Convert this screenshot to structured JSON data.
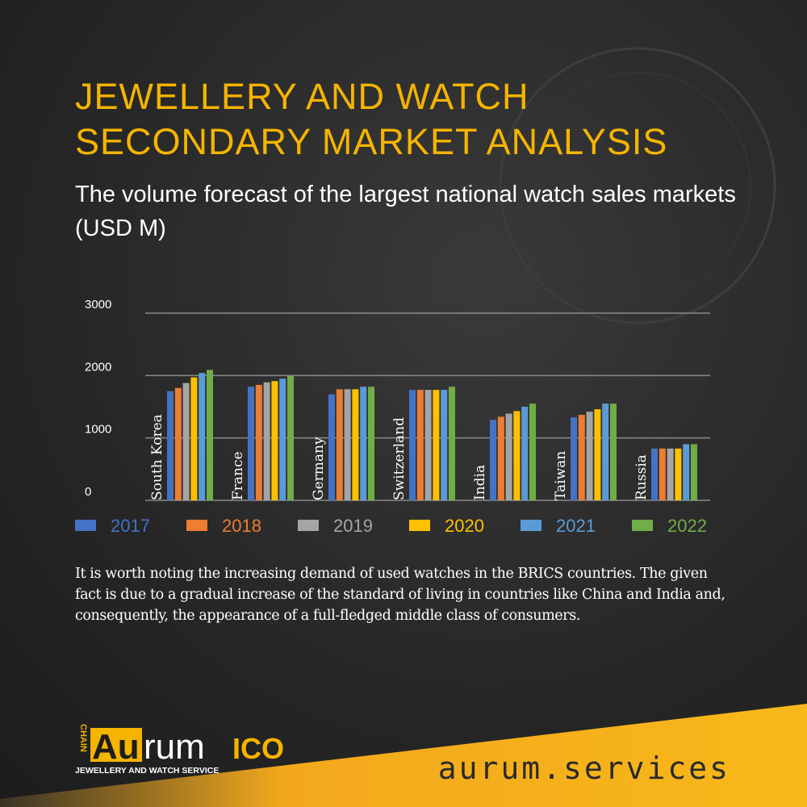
{
  "header": {
    "title": "JEWELLERY AND WATCH SECONDARY MARKET ANALYSIS"
  },
  "chart_data": {
    "type": "bar",
    "title": "The volume forecast of the largest national watch sales markets (USD M)",
    "categories": [
      "South Korea",
      "France",
      "Germany",
      "Switzerland",
      "India",
      "Taiwan",
      "Russia"
    ],
    "series": [
      {
        "name": "2017",
        "color": "#4472c4",
        "values": [
          1750,
          1820,
          1700,
          1770,
          1290,
          1330,
          830
        ]
      },
      {
        "name": "2018",
        "color": "#ed7d31",
        "values": [
          1800,
          1850,
          1780,
          1770,
          1340,
          1370,
          830
        ]
      },
      {
        "name": "2019",
        "color": "#a5a5a5",
        "values": [
          1880,
          1890,
          1780,
          1770,
          1390,
          1420,
          830
        ]
      },
      {
        "name": "2020",
        "color": "#ffc000",
        "values": [
          1970,
          1910,
          1780,
          1770,
          1430,
          1460,
          830
        ]
      },
      {
        "name": "2021",
        "color": "#5b9bd5",
        "values": [
          2040,
          1950,
          1820,
          1770,
          1500,
          1550,
          900
        ]
      },
      {
        "name": "2022",
        "color": "#70ad47",
        "values": [
          2090,
          2000,
          1820,
          1820,
          1550,
          1550,
          900
        ]
      }
    ],
    "ylim": [
      0,
      3000
    ],
    "yticks": [
      0,
      1000,
      2000,
      3000
    ],
    "grid": true
  },
  "paragraph": "It is worth noting the increasing demand of used watches in the BRICS countries. The given fact is due to a gradual increase of the standard of living in countries like China and India and, consequently, the appearance of a full-fledged middle class of consumers.",
  "logo": {
    "chain": "CHAIN",
    "au": "Au",
    "rum": "rum",
    "ico": "ICO",
    "tagline": "JEWELLERY AND WATCH SERVICE"
  },
  "footer": {
    "url": "aurum.services"
  }
}
